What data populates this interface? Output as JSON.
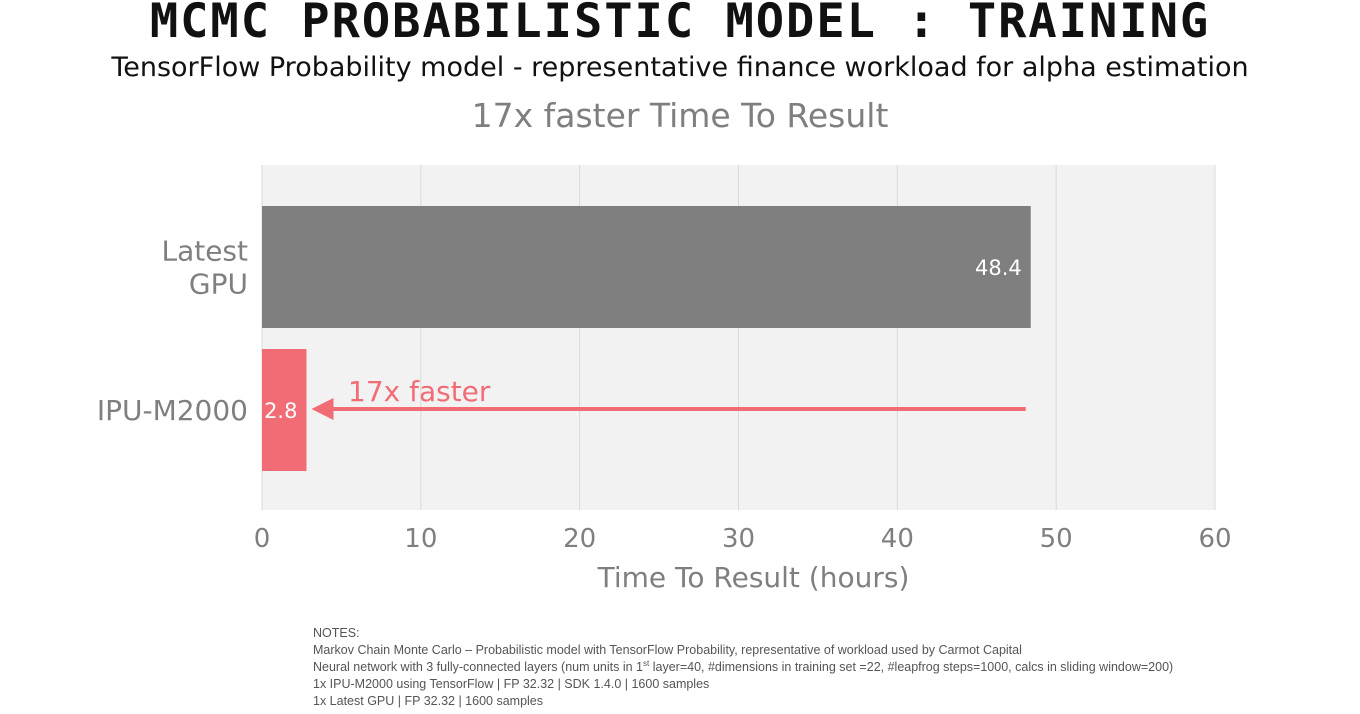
{
  "header": {
    "title": "MCMC PROBABILISTIC MODEL : TRAINING",
    "subtitle": "TensorFlow Probability model - representative finance workload for alpha estimation",
    "headline": "17x faster Time To Result"
  },
  "chart_data": {
    "type": "bar",
    "orientation": "horizontal",
    "categories": [
      "Latest GPU",
      "IPU-M2000"
    ],
    "category_lines": [
      [
        "Latest",
        "GPU"
      ],
      [
        "IPU-M2000"
      ]
    ],
    "values": [
      48.4,
      2.8
    ],
    "value_labels": [
      "48.4",
      "2.8"
    ],
    "colors": [
      "#7f7f7f",
      "#f26c76"
    ],
    "xlabel": "Time To Result (hours)",
    "ylabel": "",
    "xlim": [
      0,
      60
    ],
    "xticks": [
      0,
      10,
      20,
      30,
      40,
      50,
      60
    ],
    "xtick_labels": [
      "0",
      "10",
      "20",
      "30",
      "40",
      "50",
      "60"
    ],
    "grid": true,
    "plot_background": "#f2f2f2",
    "annotation": {
      "text": "17x faster",
      "from_value": 48.4,
      "to_value": 2.8,
      "color": "#f26c76"
    }
  },
  "notes": {
    "heading": "NOTES:",
    "line1": "Markov Chain Monte Carlo – Probabilistic model with TensorFlow Probability, representative of workload used by Carmot Capital",
    "line2_a": "Neural network with 3 fully-connected layers (num units in 1",
    "line2_sup": "st",
    "line2_b": " layer=40, #dimensions in training set =22, #leapfrog steps=1000, calcs in sliding window=200)",
    "line3": "1x IPU-M2000 using TensorFlow | FP 32.32 | SDK 1.4.0 | 1600 samples",
    "line4": "1x Latest GPU | FP 32.32  | 1600 samples"
  }
}
